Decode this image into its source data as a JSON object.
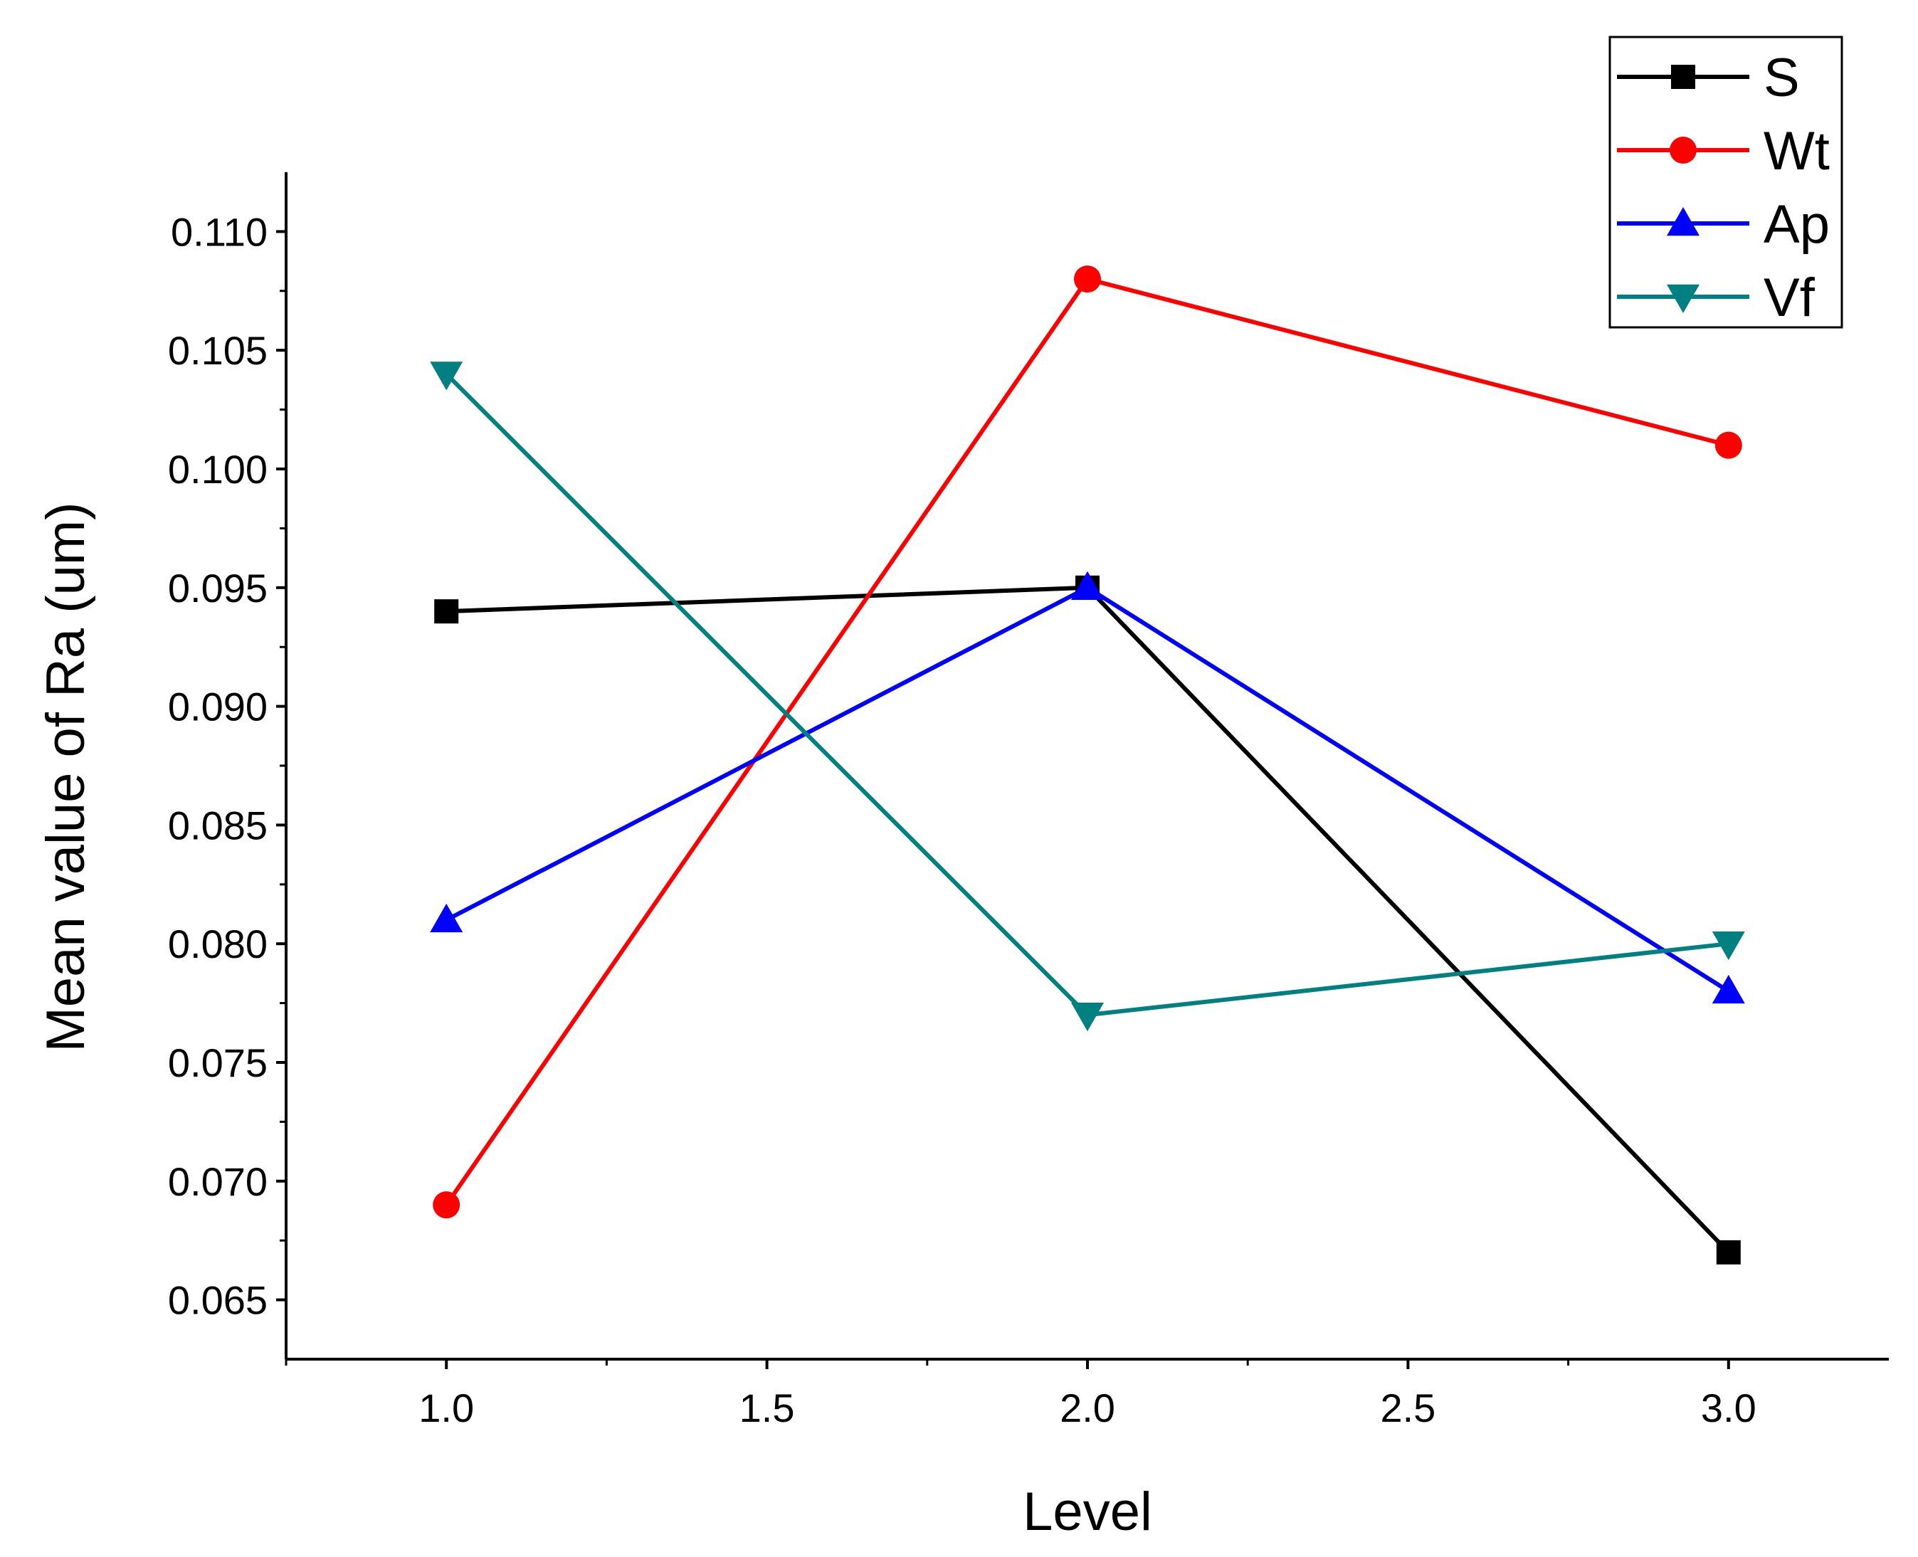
{
  "chart_data": {
    "type": "line",
    "title": "",
    "xlabel": "Level",
    "ylabel": "Mean value of Ra (um)",
    "xlim": [
      0.75,
      3.25
    ],
    "ylim": [
      0.0625,
      0.1125
    ],
    "xticks": [
      1.0,
      1.5,
      2.0,
      2.5,
      3.0
    ],
    "xtick_labels": [
      "1.0",
      "1.5",
      "2.0",
      "2.5",
      "3.0"
    ],
    "yticks": [
      0.065,
      0.07,
      0.075,
      0.08,
      0.085,
      0.09,
      0.095,
      0.1,
      0.105,
      0.11
    ],
    "ytick_labels": [
      "0.065",
      "0.070",
      "0.075",
      "0.080",
      "0.085",
      "0.090",
      "0.095",
      "0.100",
      "0.105",
      "0.110"
    ],
    "x": [
      1,
      2,
      3
    ],
    "series": [
      {
        "name": "S",
        "values": [
          0.094,
          0.095,
          0.067
        ],
        "color": "#000000",
        "marker": "square"
      },
      {
        "name": "Wt",
        "values": [
          0.069,
          0.108,
          0.101
        ],
        "color": "#ff0000",
        "marker": "circle"
      },
      {
        "name": "Ap",
        "values": [
          0.081,
          0.095,
          0.078
        ],
        "color": "#0000ff",
        "marker": "triangle-up"
      },
      {
        "name": "Vf",
        "values": [
          0.104,
          0.077,
          0.08
        ],
        "color": "#008080",
        "marker": "triangle-down"
      }
    ],
    "legend_position": "top-right",
    "grid": false
  }
}
